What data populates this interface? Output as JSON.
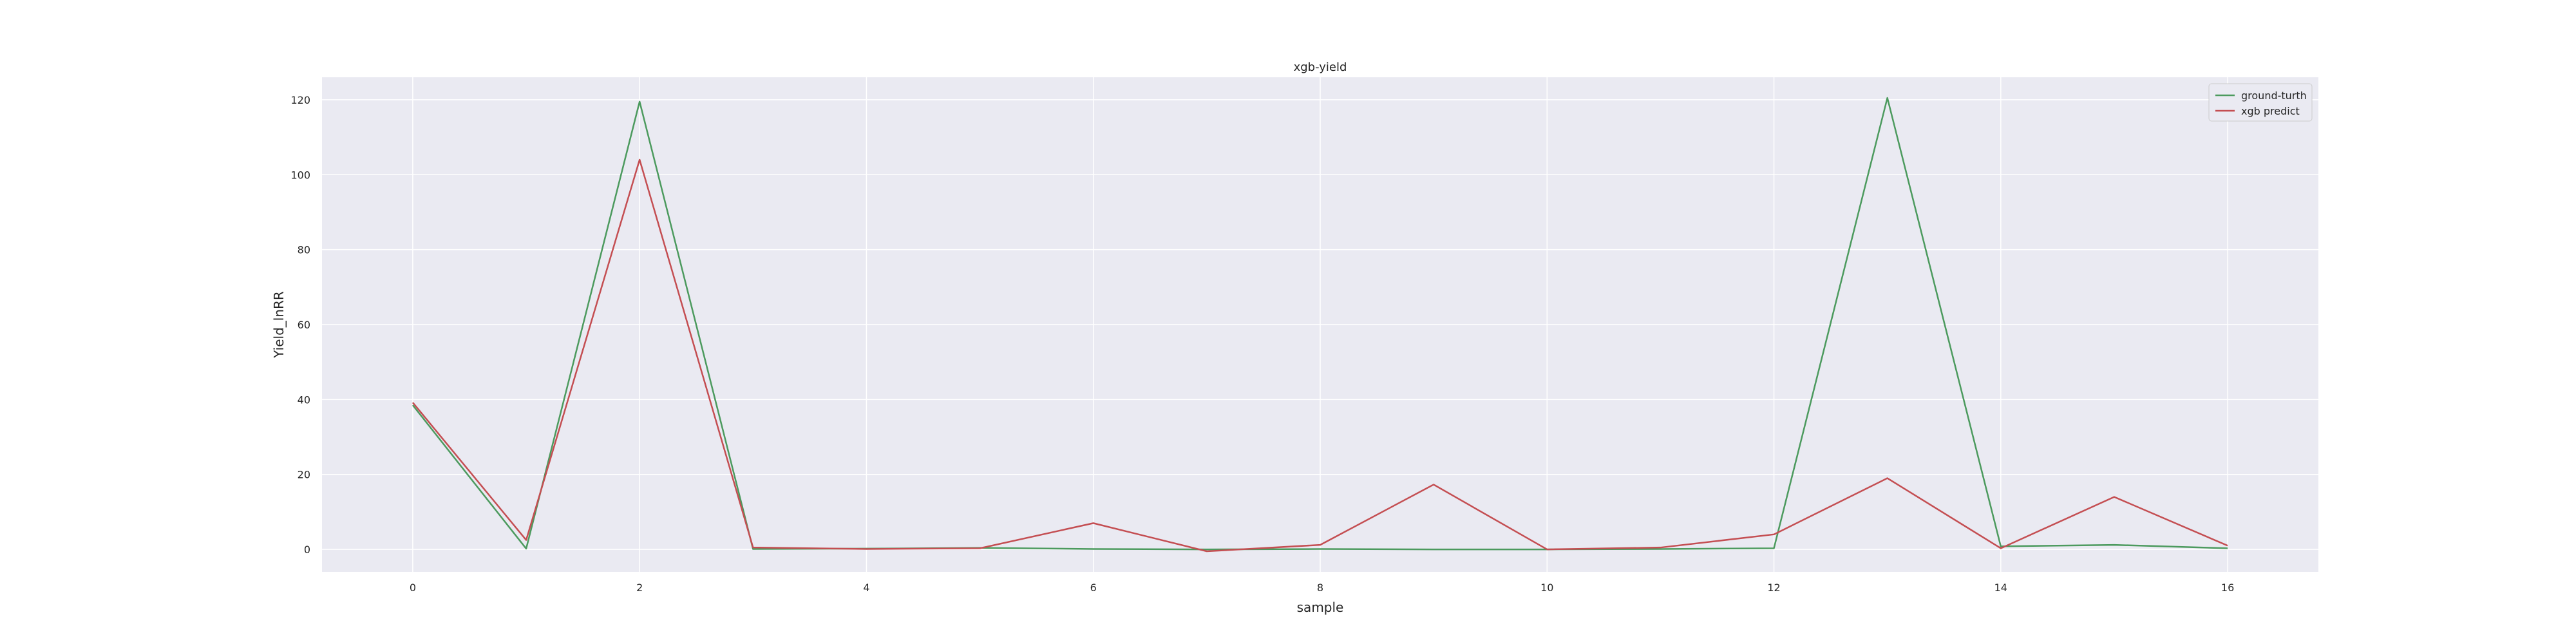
{
  "chart_data": {
    "type": "line",
    "title": "xgb-yield",
    "xlabel": "sample",
    "ylabel": "Yield_lnRR",
    "x": [
      0,
      1,
      2,
      3,
      4,
      5,
      6,
      7,
      8,
      9,
      10,
      11,
      12,
      13,
      14,
      15,
      16
    ],
    "xlim": [
      -0.8,
      16.8
    ],
    "ylim": [
      -6,
      126
    ],
    "xticks": [
      0,
      2,
      4,
      6,
      8,
      10,
      12,
      14,
      16
    ],
    "yticks": [
      0,
      20,
      40,
      60,
      80,
      100,
      120
    ],
    "grid": true,
    "legend_position": "top-right",
    "background_color": "#eaeaf2",
    "grid_color": "#ffffff",
    "series": [
      {
        "name": "ground-turth",
        "color": "#4c9a5e",
        "values": [
          38.5,
          0.2,
          119.5,
          0.1,
          0.2,
          0.4,
          0.1,
          0.0,
          0.1,
          0.0,
          0.0,
          0.1,
          0.3,
          120.5,
          0.8,
          1.2,
          0.3
        ]
      },
      {
        "name": "xgb predict",
        "color": "#c44e52",
        "values": [
          39.2,
          2.5,
          104.0,
          0.5,
          0.1,
          0.3,
          7.0,
          -0.5,
          1.2,
          17.3,
          0.0,
          0.5,
          4.0,
          19.0,
          0.3,
          14.0,
          1.0
        ]
      }
    ]
  }
}
